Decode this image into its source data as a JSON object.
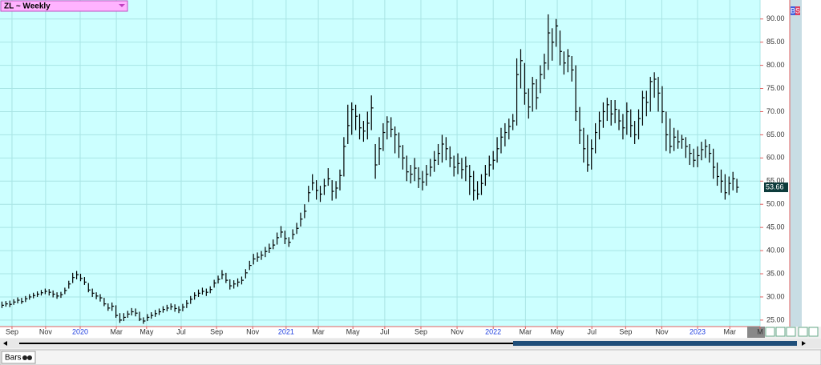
{
  "chart_data": {
    "type": "ohlc",
    "title": "ZL ~ Weekly",
    "color": "#000000",
    "background": "#ccffff",
    "grid": true,
    "xlim": [
      -0.5,
      192.9
    ],
    "ylim": [
      23.6,
      94.1
    ],
    "yticks": [
      {
        "value": 25,
        "label": "25.00"
      },
      {
        "value": 30,
        "label": "30.00"
      },
      {
        "value": 35,
        "label": "35.00"
      },
      {
        "value": 40,
        "label": "40.00"
      },
      {
        "value": 45,
        "label": "45.00"
      },
      {
        "value": 50,
        "label": "50.00"
      },
      {
        "value": 55,
        "label": "55.00"
      },
      {
        "value": 60,
        "label": "60.00"
      },
      {
        "value": 65,
        "label": "65.00"
      },
      {
        "value": 70,
        "label": "70.00"
      },
      {
        "value": 75,
        "label": "75.00"
      },
      {
        "value": 80,
        "label": "80.00"
      },
      {
        "value": 85,
        "label": "85.00"
      },
      {
        "value": 90,
        "label": "90.00"
      }
    ],
    "xticks": [
      {
        "value": 2.55,
        "label": "Sep"
      },
      {
        "value": 11.1,
        "label": "Nov"
      },
      {
        "value": 19.9,
        "label": "2020"
      },
      {
        "value": 29.1,
        "label": "Mar"
      },
      {
        "value": 36.8,
        "label": "May"
      },
      {
        "value": 45.6,
        "label": "Jul"
      },
      {
        "value": 54.6,
        "label": "Sep"
      },
      {
        "value": 63.8,
        "label": "Nov"
      },
      {
        "value": 72.3,
        "label": "2021"
      },
      {
        "value": 80.5,
        "label": "Mar"
      },
      {
        "value": 89.3,
        "label": "May"
      },
      {
        "value": 97.4,
        "label": "Jul"
      },
      {
        "value": 106.6,
        "label": "Sep"
      },
      {
        "value": 115.8,
        "label": "Nov"
      },
      {
        "value": 125,
        "label": "2022"
      },
      {
        "value": 133.2,
        "label": "Mar"
      },
      {
        "value": 141.3,
        "label": "May"
      },
      {
        "value": 150.1,
        "label": "Jul"
      },
      {
        "value": 158.7,
        "label": "Sep"
      },
      {
        "value": 167.9,
        "label": "Nov"
      },
      {
        "value": 177,
        "label": "2023"
      },
      {
        "value": 185.2,
        "label": "Mar"
      },
      {
        "value": 192.9,
        "label": "M"
      }
    ],
    "high": [
      29.0,
      29.1,
      29.2,
      29.5,
      29.9,
      29.8,
      30.2,
      30.6,
      30.9,
      31.2,
      31.5,
      31.8,
      31.7,
      31.4,
      31.0,
      31.1,
      32.0,
      33.5,
      35.2,
      35.6,
      35.0,
      34.3,
      33.0,
      31.8,
      31.0,
      30.6,
      29.8,
      28.6,
      28.8,
      28.2,
      26.5,
      26.5,
      27.0,
      27.6,
      27.5,
      26.8,
      25.6,
      26.3,
      26.7,
      27.2,
      27.5,
      28.0,
      28.3,
      28.6,
      28.4,
      28.0,
      28.5,
      29.3,
      30.2,
      31.0,
      31.6,
      32.0,
      31.8,
      32.3,
      33.7,
      34.6,
      35.8,
      35.2,
      33.8,
      33.6,
      34.0,
      34.4,
      36.0,
      37.8,
      39.3,
      39.6,
      39.9,
      40.8,
      41.5,
      42.4,
      43.9,
      45.3,
      44.3,
      42.9,
      44.6,
      46.0,
      48.2,
      50.0,
      54.0,
      56.5,
      55.2,
      54.0,
      55.5,
      57.8,
      55.2,
      55.0,
      57.5,
      64.5,
      71.5,
      72.0,
      71.5,
      69.5,
      68.0,
      70.0,
      73.5,
      63.0,
      64.5,
      67.5,
      69.0,
      68.8,
      66.8,
      65.5,
      62.8,
      60.5,
      58.5,
      60.0,
      58.0,
      57.2,
      58.5,
      59.8,
      61.5,
      63.0,
      65.0,
      64.5,
      62.5,
      60.5,
      61.0,
      60.0,
      60.3,
      58.5,
      57.2,
      55.0,
      56.5,
      58.5,
      60.5,
      61.5,
      64.5,
      66.5,
      67.5,
      68.5,
      69.5,
      81.5,
      83.5,
      80.5,
      75.0,
      77.5,
      77.0,
      80.0,
      82.5,
      91.0,
      88.0,
      90.0,
      87.5,
      83.0,
      83.5,
      82.0,
      80.0,
      71.0,
      66.5,
      65.0,
      64.0,
      67.5,
      70.0,
      72.0,
      73.0,
      72.5,
      72.5,
      70.5,
      69.5,
      72.0,
      70.5,
      68.0,
      70.5,
      74.5,
      74.5,
      77.5,
      78.5,
      77.5,
      75.5,
      70.0,
      68.5,
      66.5,
      66.0,
      65.0,
      64.5,
      63.0,
      62.0,
      62.5,
      63.5,
      64.0,
      63.0,
      62.0,
      59.0,
      57.5,
      56.5,
      56.0,
      57.0,
      55.5
    ],
    "low": [
      27.6,
      27.9,
      27.8,
      28.3,
      28.6,
      28.5,
      28.9,
      29.4,
      29.7,
      30.0,
      30.3,
      30.6,
      30.3,
      29.9,
      29.6,
      29.8,
      30.6,
      31.8,
      33.0,
      33.8,
      33.4,
      32.6,
      31.0,
      30.0,
      29.5,
      29.0,
      28.0,
      27.0,
      27.0,
      25.5,
      24.4,
      24.8,
      25.5,
      26.0,
      25.8,
      24.8,
      24.2,
      24.8,
      25.3,
      25.7,
      26.1,
      26.6,
      26.9,
      27.2,
      26.8,
      26.5,
      26.9,
      27.6,
      28.5,
      29.4,
      30.0,
      30.5,
      30.2,
      30.8,
      32.0,
      32.9,
      33.8,
      33.0,
      31.6,
      31.8,
      32.2,
      32.7,
      34.0,
      35.8,
      37.0,
      37.6,
      38.0,
      38.6,
      39.5,
      40.3,
      41.3,
      42.8,
      41.4,
      40.8,
      42.4,
      43.6,
      45.2,
      47.0,
      50.5,
      53.0,
      51.0,
      50.5,
      52.0,
      54.0,
      50.8,
      51.2,
      53.0,
      56.0,
      63.0,
      65.0,
      66.0,
      64.0,
      63.5,
      64.0,
      66.0,
      55.5,
      58.5,
      61.5,
      64.0,
      64.5,
      61.0,
      60.0,
      57.5,
      55.0,
      54.5,
      55.0,
      53.5,
      53.0,
      54.0,
      56.0,
      57.0,
      58.5,
      59.0,
      59.5,
      58.0,
      56.0,
      56.5,
      55.5,
      55.0,
      52.0,
      50.8,
      51.0,
      52.0,
      54.0,
      56.0,
      57.5,
      59.0,
      61.0,
      62.5,
      64.0,
      66.0,
      67.0,
      75.0,
      71.5,
      68.5,
      70.0,
      70.5,
      74.0,
      77.0,
      79.0,
      81.0,
      84.0,
      80.0,
      78.0,
      78.5,
      76.5,
      68.0,
      63.0,
      59.0,
      57.0,
      57.5,
      61.0,
      64.0,
      66.5,
      68.0,
      67.0,
      67.5,
      66.0,
      64.0,
      65.0,
      64.5,
      63.0,
      64.0,
      67.0,
      69.0,
      70.0,
      73.0,
      70.0,
      67.5,
      61.5,
      61.0,
      61.5,
      62.0,
      62.0,
      60.0,
      58.5,
      58.0,
      58.0,
      59.5,
      60.0,
      59.0,
      55.5,
      54.0,
      52.5,
      51.0,
      52.0,
      53.0,
      52.5
    ],
    "close": [
      28.2,
      28.5,
      28.4,
      28.9,
      29.3,
      29.0,
      29.6,
      30.0,
      30.3,
      30.6,
      30.9,
      31.2,
      31.0,
      30.6,
      30.2,
      30.5,
      31.4,
      32.8,
      34.2,
      34.8,
      34.0,
      33.2,
      31.5,
      30.8,
      30.2,
      29.8,
      28.5,
      27.6,
      28.0,
      26.0,
      25.0,
      25.6,
      26.3,
      26.8,
      26.5,
      25.2,
      24.8,
      25.6,
      26.0,
      26.4,
      26.8,
      27.3,
      27.6,
      27.9,
      27.5,
      27.2,
      27.8,
      28.6,
      29.5,
      30.3,
      30.8,
      31.2,
      31.0,
      31.6,
      33.0,
      33.8,
      34.8,
      33.6,
      32.4,
      32.8,
      33.2,
      33.6,
      35.2,
      36.8,
      38.2,
      38.6,
      39.0,
      39.8,
      40.5,
      41.2,
      42.8,
      44.0,
      42.6,
      41.8,
      43.5,
      44.8,
      46.8,
      48.5,
      52.5,
      54.6,
      53.0,
      52.2,
      54.0,
      55.5,
      52.8,
      53.5,
      56.2,
      62.5,
      67.0,
      70.5,
      69.0,
      66.5,
      65.8,
      67.5,
      70.8,
      58.5,
      62.0,
      65.5,
      67.8,
      66.2,
      65.0,
      62.5,
      60.0,
      57.0,
      56.5,
      57.8,
      55.5,
      54.8,
      56.5,
      58.0,
      59.5,
      61.0,
      63.0,
      62.0,
      60.0,
      58.0,
      58.8,
      57.5,
      58.2,
      56.0,
      53.0,
      52.2,
      54.5,
      56.5,
      58.5,
      59.5,
      62.0,
      64.5,
      65.5,
      66.8,
      68.0,
      78.0,
      81.0,
      74.0,
      71.0,
      76.0,
      73.0,
      78.0,
      80.5,
      87.0,
      85.0,
      88.5,
      83.0,
      80.5,
      82.0,
      79.0,
      70.0,
      66.0,
      62.0,
      58.5,
      62.0,
      65.5,
      68.0,
      70.0,
      71.5,
      69.5,
      70.5,
      68.0,
      66.5,
      70.0,
      67.0,
      65.0,
      68.5,
      73.0,
      72.0,
      76.5,
      77.0,
      74.0,
      70.0,
      65.0,
      62.5,
      64.5,
      63.5,
      64.0,
      62.5,
      61.0,
      59.5,
      60.5,
      61.8,
      62.5,
      61.0,
      58.0,
      56.0,
      55.0,
      52.5,
      54.5,
      55.5,
      53.66
    ]
  },
  "buttons": [
    "B",
    "S"
  ],
  "footer": {
    "label": "Bars"
  }
}
